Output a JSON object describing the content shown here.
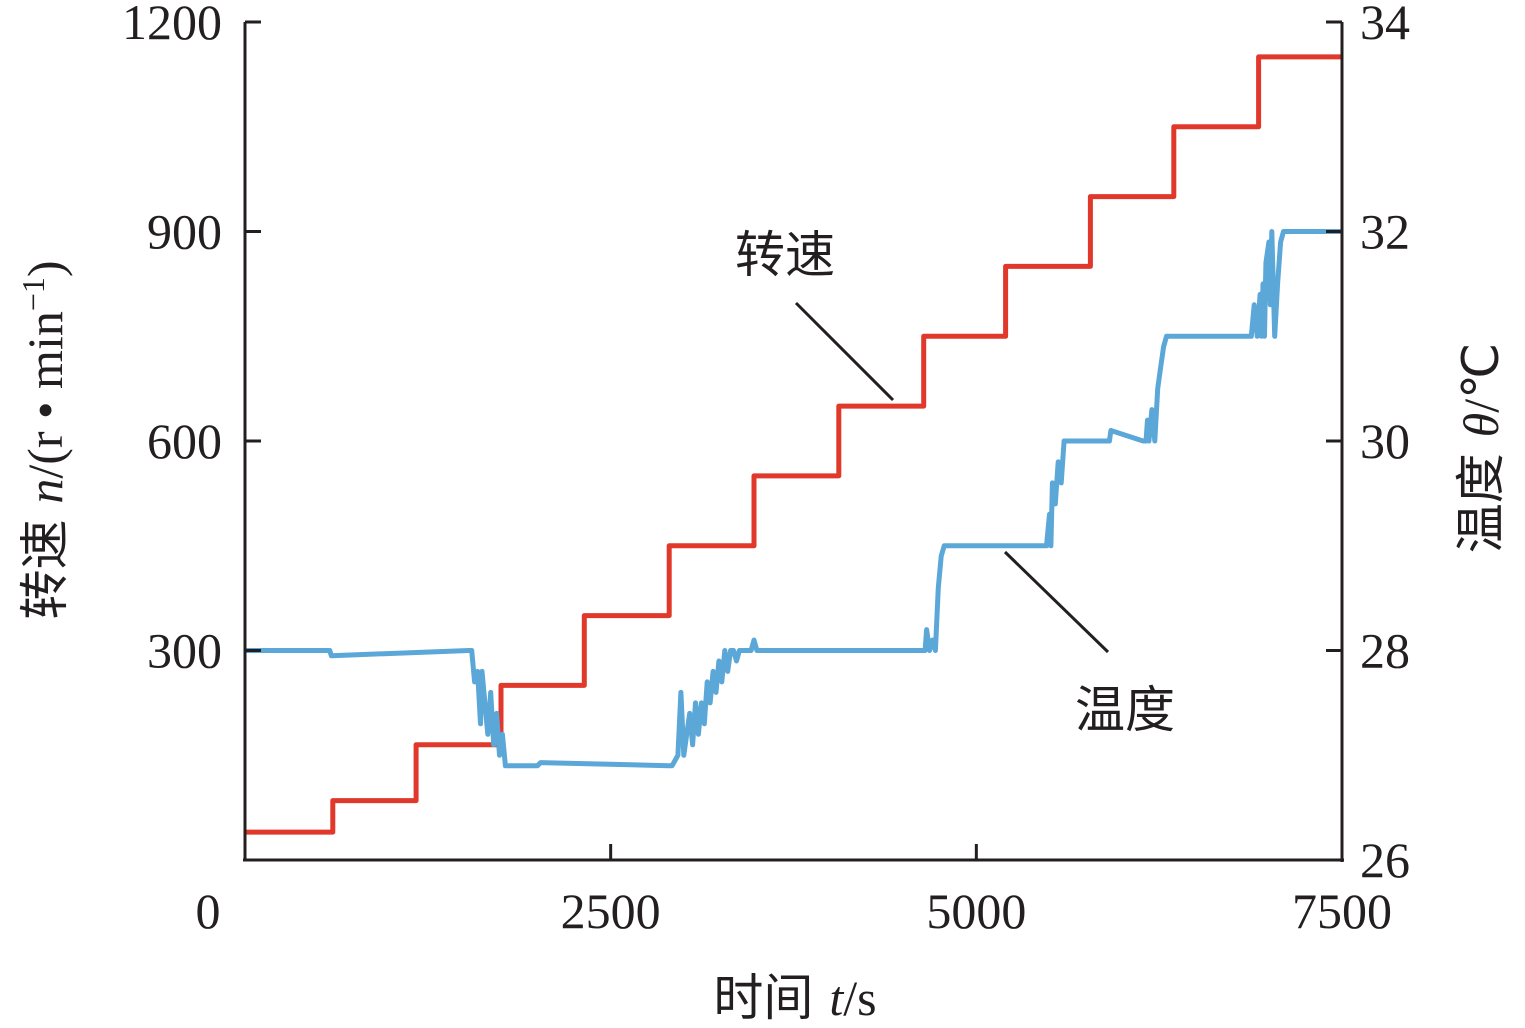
{
  "chart_data": {
    "type": "line",
    "x": {
      "label_main": "时间 ",
      "label_var": "t",
      "label_unit": "/s",
      "range": [
        0,
        7500
      ],
      "ticks": [
        "0",
        "2500",
        "5000",
        "7500"
      ],
      "tick_values": [
        0,
        2500,
        5000,
        7500
      ]
    },
    "y_left": {
      "label_main": "转速 ",
      "label_var": "n",
      "label_unit": "/(r • min",
      "label_sup": "−1",
      "label_close": ")",
      "range": [
        0,
        1200
      ],
      "ticks": [
        "300",
        "600",
        "900",
        "1200"
      ],
      "tick_values": [
        300,
        600,
        900,
        1200
      ]
    },
    "y_right": {
      "label_main": "温度 ",
      "label_var": "θ",
      "label_unit": "/℃",
      "range": [
        26,
        34
      ],
      "ticks": [
        "26",
        "28",
        "30",
        "32",
        "34"
      ],
      "tick_values": [
        26,
        28,
        30,
        32,
        34
      ]
    },
    "series": [
      {
        "name": "转速",
        "axis": "left",
        "color": "#e0392b",
        "shape": "step",
        "x": [
          0,
          600,
          600,
          1170,
          1170,
          1750,
          1750,
          2320,
          2320,
          2900,
          2900,
          3480,
          3480,
          4060,
          4060,
          4640,
          4640,
          5200,
          5200,
          5780,
          5780,
          6350,
          6350,
          6930,
          6930,
          7500
        ],
        "y": [
          40,
          40,
          85,
          85,
          165,
          165,
          250,
          250,
          350,
          350,
          450,
          450,
          550,
          550,
          650,
          650,
          750,
          750,
          850,
          850,
          950,
          950,
          1050,
          1050,
          1150,
          1150
        ]
      },
      {
        "name": "温度",
        "axis": "right",
        "color": "#5ba7d8",
        "x": [
          0,
          580,
          590,
          1530,
          1550,
          1570,
          1590,
          1610,
          1620,
          1640,
          1660,
          1680,
          1700,
          1720,
          1740,
          1760,
          1780,
          1800,
          2000,
          2020,
          2900,
          2920,
          2960,
          2980,
          3000,
          3020,
          3040,
          3060,
          3080,
          3100,
          3120,
          3140,
          3160,
          3180,
          3200,
          3220,
          3240,
          3260,
          3280,
          3300,
          3320,
          3340,
          3360,
          3380,
          3400,
          3460,
          3480,
          3500,
          4650,
          4660,
          4680,
          4700,
          4720,
          4740,
          4760,
          4780,
          4800,
          5440,
          5460,
          5480,
          5500,
          5510,
          5520,
          5540,
          5560,
          5580,
          5600,
          5620,
          5900,
          5910,
          5920,
          6140,
          6160,
          6170,
          6180,
          6200,
          6220,
          6240,
          6260,
          6280,
          6300,
          6850,
          6860,
          6880,
          6900,
          6920,
          6940,
          6950,
          6960,
          6970,
          6980,
          7000,
          7010,
          7020,
          7040,
          7060,
          7080,
          7100,
          7500
        ],
        "y": [
          28.0,
          28.0,
          27.95,
          28.0,
          28.0,
          27.7,
          27.8,
          27.3,
          27.8,
          27.5,
          27.2,
          27.6,
          27.1,
          27.4,
          27.0,
          27.2,
          26.9,
          26.9,
          26.9,
          26.93,
          26.9,
          26.9,
          27.0,
          27.6,
          27.0,
          27.2,
          27.4,
          27.1,
          27.5,
          27.2,
          27.5,
          27.3,
          27.7,
          27.5,
          27.8,
          27.6,
          27.9,
          27.7,
          28.0,
          27.8,
          28.0,
          28.0,
          27.9,
          28.0,
          28.0,
          28.0,
          28.1,
          28.0,
          28.0,
          28.2,
          28.0,
          28.1,
          28.0,
          28.6,
          28.9,
          29.0,
          29.0,
          29.0,
          29.0,
          29.0,
          29.3,
          29.0,
          29.6,
          29.4,
          29.8,
          29.6,
          30.0,
          30.0,
          30.0,
          30.0,
          30.1,
          30.0,
          30.0,
          30.2,
          30.0,
          30.3,
          30.0,
          30.5,
          30.7,
          30.9,
          31.0,
          31.0,
          31.0,
          31.0,
          31.3,
          31.0,
          31.4,
          31.0,
          31.5,
          31.0,
          31.7,
          31.9,
          31.3,
          32.0,
          31.0,
          31.5,
          31.9,
          32.0,
          32.0
        ]
      }
    ],
    "annotations": [
      {
        "text": "转速",
        "series": "转速"
      },
      {
        "text": "温度",
        "series": "温度"
      }
    ],
    "grid": false,
    "legend": "none"
  }
}
